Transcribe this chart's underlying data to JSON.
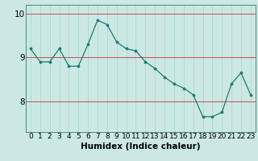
{
  "x": [
    0,
    1,
    2,
    3,
    4,
    5,
    6,
    7,
    8,
    9,
    10,
    11,
    12,
    13,
    14,
    15,
    16,
    17,
    18,
    19,
    20,
    21,
    22,
    23
  ],
  "y": [
    9.2,
    8.9,
    8.9,
    9.2,
    8.8,
    8.8,
    9.3,
    9.85,
    9.75,
    9.35,
    9.2,
    9.15,
    8.9,
    8.75,
    8.55,
    8.4,
    8.3,
    8.15,
    7.65,
    7.65,
    7.75,
    8.4,
    8.65,
    8.15
  ],
  "xlabel": "Humidex (Indice chaleur)",
  "yticks": [
    8,
    9,
    10
  ],
  "ylim": [
    7.3,
    10.2
  ],
  "xlim": [
    -0.5,
    23.5
  ],
  "line_color": "#1a7a6e",
  "marker_color": "#1a7a6e",
  "bg_color": "#cce8e4",
  "grid_color_x": "#a8d4cf",
  "grid_color_y": "#cc3333",
  "xlabel_fontsize": 7.5,
  "tick_fontsize": 6.5,
  "ytick_fontsize": 7.5
}
